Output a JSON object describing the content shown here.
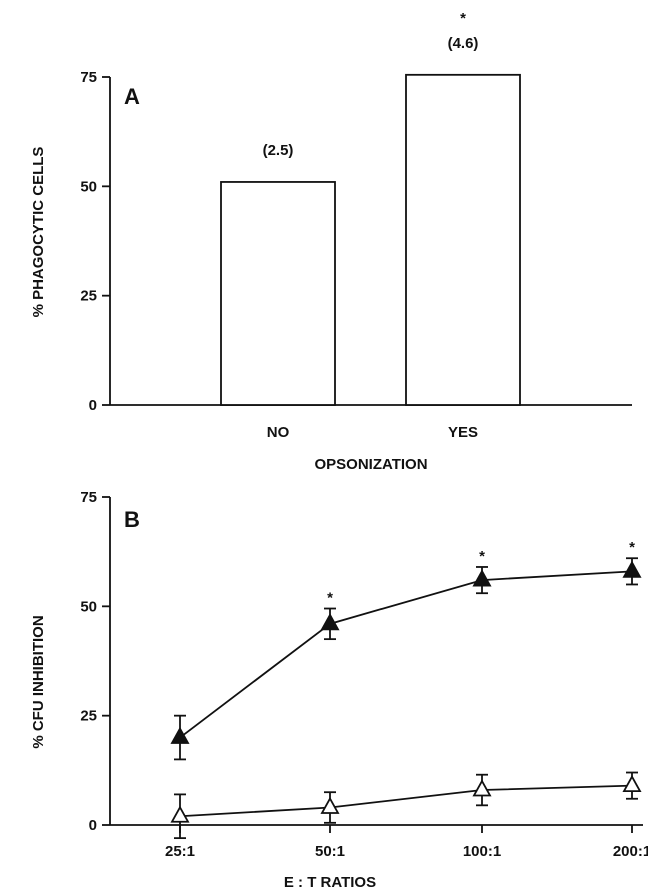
{
  "chart_data": [
    {
      "type": "bar",
      "panel_label": "A",
      "categories": [
        "NO",
        "YES"
      ],
      "values": [
        51,
        75.5
      ],
      "annotations": [
        "(2.5)",
        "(4.6)"
      ],
      "significance": [
        "",
        "*"
      ],
      "xlabel": "OPSONIZATION",
      "ylabel": "% PHAGOCYTIC CELLS",
      "ylim": [
        0,
        75
      ],
      "yticks": [
        0,
        25,
        50,
        75
      ],
      "grid": false,
      "colors": {
        "bar_fill": "#ffffff",
        "stroke": "#111111"
      }
    },
    {
      "type": "line",
      "panel_label": "B",
      "categories": [
        "25:1",
        "50:1",
        "100:1",
        "200:1"
      ],
      "series": [
        {
          "marker": "filled-triangle",
          "values": [
            20,
            46,
            56,
            58
          ],
          "errors": [
            5,
            3.5,
            3,
            3
          ],
          "significance": [
            "",
            "*",
            "*",
            "*"
          ]
        },
        {
          "marker": "open-triangle",
          "values": [
            2,
            4,
            8,
            9
          ],
          "errors": [
            5,
            3.5,
            3.5,
            3
          ]
        }
      ],
      "xlabel": "E : T RATIOS",
      "ylabel": "% CFU INHIBITION",
      "ylim": [
        0,
        75
      ],
      "yticks": [
        0,
        25,
        50,
        75
      ],
      "grid": false,
      "colors": {
        "marker": "#111111",
        "line": "#111111"
      }
    }
  ]
}
